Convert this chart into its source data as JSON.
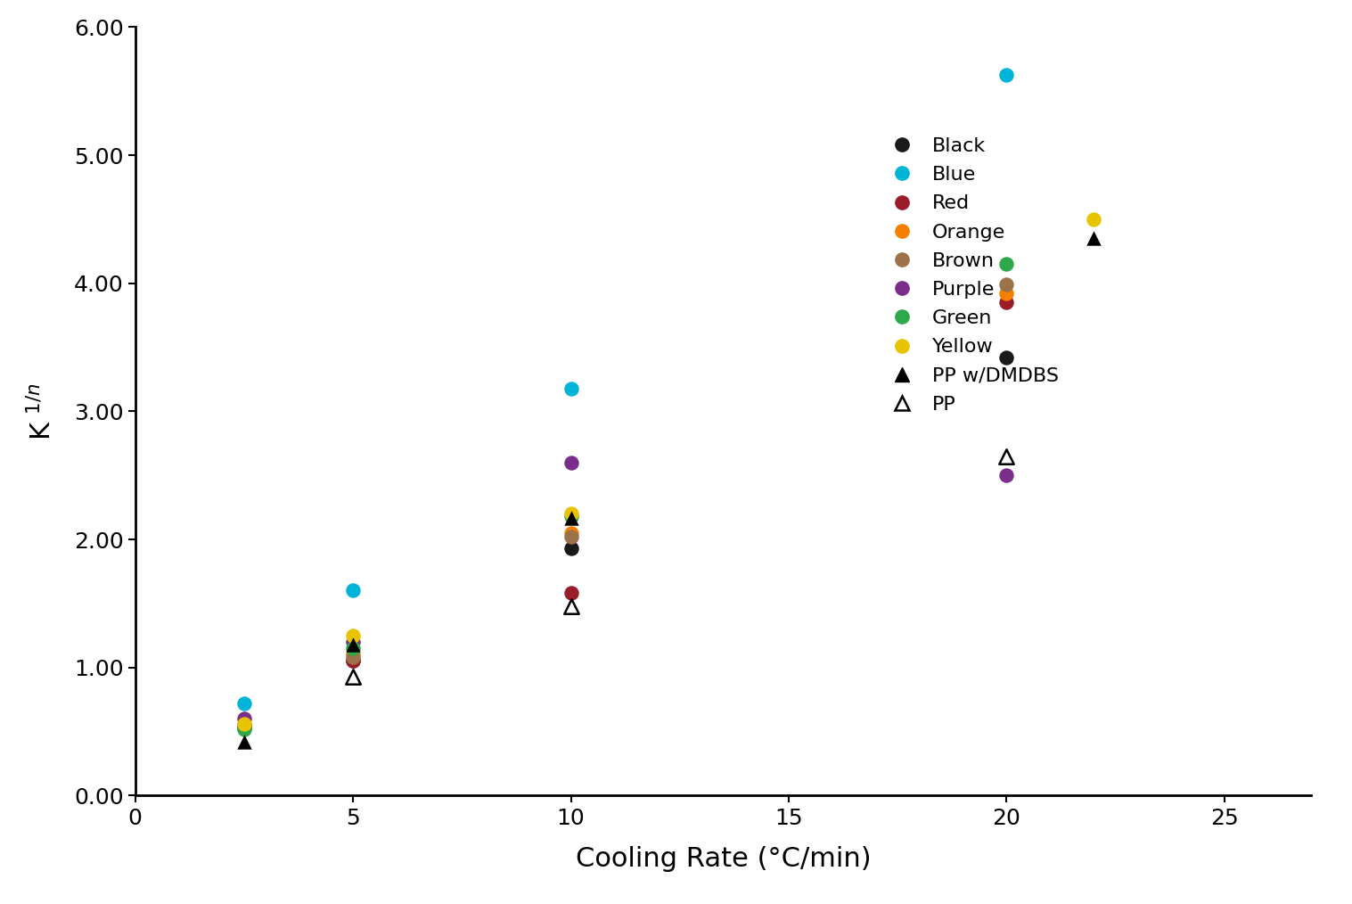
{
  "title": "",
  "xlabel": "Cooling Rate (°C/min)",
  "xlim": [
    0,
    27
  ],
  "ylim": [
    0,
    6.0
  ],
  "xticks": [
    0,
    5,
    10,
    15,
    20,
    25
  ],
  "yticks": [
    0.0,
    1.0,
    2.0,
    3.0,
    4.0,
    5.0,
    6.0
  ],
  "series": [
    {
      "label": "Black",
      "color": "#1a1a1a",
      "marker": "o",
      "filled": true,
      "data": [
        [
          2.5,
          0.53
        ],
        [
          5,
          1.05
        ],
        [
          10,
          1.93
        ],
        [
          20,
          3.42
        ]
      ]
    },
    {
      "label": "Blue",
      "color": "#00b4d8",
      "marker": "o",
      "filled": true,
      "data": [
        [
          2.5,
          0.72
        ],
        [
          5,
          1.6
        ],
        [
          10,
          3.18
        ],
        [
          20,
          5.63
        ]
      ]
    },
    {
      "label": "Red",
      "color": "#9b1d2a",
      "marker": "o",
      "filled": true,
      "data": [
        [
          2.5,
          0.55
        ],
        [
          5,
          1.05
        ],
        [
          10,
          1.58
        ],
        [
          20,
          3.85
        ]
      ]
    },
    {
      "label": "Orange",
      "color": "#f77f00",
      "marker": "o",
      "filled": true,
      "data": [
        [
          2.5,
          0.55
        ],
        [
          5,
          1.1
        ],
        [
          10,
          2.05
        ],
        [
          20,
          3.92
        ]
      ]
    },
    {
      "label": "Brown",
      "color": "#9c7248",
      "marker": "o",
      "filled": true,
      "data": [
        [
          2.5,
          0.54
        ],
        [
          5,
          1.08
        ],
        [
          10,
          2.02
        ],
        [
          20,
          3.99
        ]
      ]
    },
    {
      "label": "Purple",
      "color": "#7b2d8b",
      "marker": "o",
      "filled": true,
      "data": [
        [
          2.5,
          0.6
        ],
        [
          5,
          1.2
        ],
        [
          10,
          2.6
        ],
        [
          20,
          2.5
        ]
      ]
    },
    {
      "label": "Green",
      "color": "#2ea84a",
      "marker": "o",
      "filled": true,
      "data": [
        [
          2.5,
          0.52
        ],
        [
          5,
          1.15
        ],
        [
          10,
          2.18
        ],
        [
          20,
          4.15
        ]
      ]
    },
    {
      "label": "Yellow",
      "color": "#e8c300",
      "marker": "o",
      "filled": true,
      "data": [
        [
          2.5,
          0.56
        ],
        [
          5,
          1.25
        ],
        [
          10,
          2.2
        ],
        [
          22,
          4.5
        ]
      ]
    },
    {
      "label": "PP w/DMDBS",
      "color": "#000000",
      "marker": "^",
      "filled": true,
      "data": [
        [
          2.5,
          0.42
        ],
        [
          5,
          1.18
        ],
        [
          10,
          2.17
        ],
        [
          22,
          4.35
        ]
      ]
    },
    {
      "label": "PP",
      "color": "#000000",
      "marker": "^",
      "filled": false,
      "data": [
        [
          5,
          0.93
        ],
        [
          10,
          1.48
        ],
        [
          20,
          2.65
        ]
      ]
    }
  ],
  "legend_colors": {
    "Black": "#1a1a1a",
    "Blue": "#00b4d8",
    "Red": "#9b1d2a",
    "Orange": "#f77f00",
    "Brown": "#9c7248",
    "Purple": "#7b2d8b",
    "Green": "#2ea84a",
    "Yellow": "#e8c300"
  },
  "marker_size": 140,
  "triangle_size": 140,
  "fontsize_axis_label": 22,
  "fontsize_tick": 18,
  "fontsize_legend": 16
}
